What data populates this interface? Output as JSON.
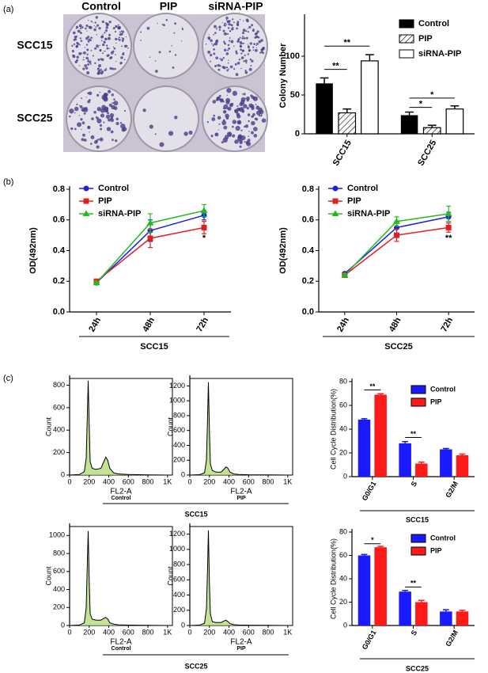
{
  "panel_labels": [
    "(a)",
    "(b)",
    "(c)"
  ],
  "plate_image": {
    "columns": [
      "Control",
      "PIP",
      "siRNA-PIP"
    ],
    "rows": [
      "SCC15",
      "SCC25"
    ]
  },
  "group_labels": [
    "SCC15",
    "SCC25"
  ],
  "chart_data": [
    {
      "type": "bar",
      "ylabel": "Colony Number",
      "categories": [
        "SCC15",
        "SCC25"
      ],
      "series": [
        {
          "name": "Control",
          "color": "#000000",
          "values": [
            65,
            24
          ],
          "errors": [
            7,
            4
          ]
        },
        {
          "name": "PIP",
          "color": "#ffffff",
          "pattern": "hatch",
          "values": [
            27,
            8
          ],
          "errors": [
            5,
            3
          ]
        },
        {
          "name": "siRNA-PIP",
          "color": "#ffffff",
          "values": [
            94,
            32
          ],
          "errors": [
            8,
            4
          ]
        }
      ],
      "ylim": [
        0,
        150
      ],
      "yticks": [
        0,
        50,
        100
      ],
      "legend": "upper right",
      "annotations": [
        "**",
        "**",
        "*",
        "*"
      ]
    },
    {
      "type": "line",
      "ylabel": "OD(492nm)",
      "xlabel": "SCC15",
      "categories": [
        "24h",
        "48h",
        "72h"
      ],
      "series": [
        {
          "name": "Control",
          "color": "#1f1fe0",
          "marker": "circle",
          "values": [
            0.19,
            0.53,
            0.63
          ],
          "errors": [
            0.01,
            0.07,
            0.03
          ]
        },
        {
          "name": "PIP",
          "color": "#e02020",
          "marker": "square",
          "values": [
            0.2,
            0.48,
            0.55
          ],
          "errors": [
            0.01,
            0.06,
            0.04
          ]
        },
        {
          "name": "siRNA-PIP",
          "color": "#22bb22",
          "marker": "triangle",
          "values": [
            0.19,
            0.58,
            0.66
          ],
          "errors": [
            0.01,
            0.06,
            0.04
          ]
        }
      ],
      "ylim": [
        0,
        0.8
      ],
      "yticks": [
        {
          "value": 0,
          "label": "0.0"
        },
        0.2,
        0.4,
        0.6,
        0.8
      ],
      "legend": "upper left",
      "annotations": [
        "*"
      ]
    },
    {
      "type": "line",
      "ylabel": "OD(492nm)",
      "xlabel": "SCC25",
      "categories": [
        "24h",
        "48h",
        "72h"
      ],
      "series": [
        {
          "name": "Control",
          "color": "#1f1fe0",
          "marker": "circle",
          "values": [
            0.25,
            0.55,
            0.62
          ],
          "errors": [
            0.01,
            0.04,
            0.03
          ]
        },
        {
          "name": "PIP",
          "color": "#e02020",
          "marker": "square",
          "values": [
            0.24,
            0.5,
            0.55
          ],
          "errors": [
            0.01,
            0.04,
            0.03
          ]
        },
        {
          "name": "siRNA-PIP",
          "color": "#22bb22",
          "marker": "triangle",
          "values": [
            0.24,
            0.59,
            0.64
          ],
          "errors": [
            0.01,
            0.03,
            0.05
          ]
        }
      ],
      "ylim": [
        0,
        0.8
      ],
      "yticks": [
        {
          "value": 0,
          "label": "0.0"
        },
        0.2,
        0.4,
        0.6,
        0.8
      ],
      "legend": "upper left",
      "annotations": [
        "**"
      ]
    },
    {
      "type": "histogram-line",
      "ylabel": "Count",
      "xlabel": "FL2-A",
      "caption": "Control",
      "color": "#000000",
      "fill": "#a9d66a",
      "x": [
        0,
        100,
        150,
        170,
        180,
        190,
        200,
        210,
        230,
        270,
        320,
        350,
        370,
        390,
        410,
        450,
        500,
        600,
        800,
        1000
      ],
      "values": [
        0,
        5,
        30,
        150,
        500,
        840,
        450,
        120,
        60,
        50,
        60,
        120,
        160,
        130,
        60,
        20,
        10,
        5,
        2,
        0
      ],
      "xlim": [
        0,
        1050
      ],
      "xticks": [
        0,
        200,
        400,
        600,
        800,
        {
          "value": 1000,
          "label": "1K"
        }
      ],
      "ylim": [
        0,
        860
      ],
      "yticks": [
        0,
        200,
        400,
        600,
        800
      ]
    },
    {
      "type": "histogram-line",
      "ylabel": "Count",
      "xlabel": "FL2-A",
      "caption": "PIP",
      "color": "#000000",
      "fill": "#a9d66a",
      "x": [
        0,
        100,
        150,
        170,
        180,
        190,
        200,
        210,
        230,
        270,
        320,
        350,
        370,
        390,
        410,
        450,
        500,
        600,
        800,
        1000
      ],
      "values": [
        0,
        5,
        30,
        200,
        700,
        1250,
        600,
        150,
        60,
        40,
        40,
        80,
        110,
        90,
        40,
        15,
        8,
        4,
        2,
        0
      ],
      "xlim": [
        0,
        1050
      ],
      "xticks": [
        0,
        200,
        400,
        600,
        800,
        {
          "value": 1000,
          "label": "1K"
        }
      ],
      "ylim": [
        0,
        1300
      ],
      "yticks": [
        0,
        200,
        400,
        600,
        800,
        1000,
        1200
      ]
    },
    {
      "type": "histogram-line",
      "ylabel": "Count",
      "xlabel": "FL2-A",
      "caption": "Control",
      "color": "#000000",
      "fill": "#a9d66a",
      "x": [
        0,
        100,
        150,
        170,
        180,
        190,
        200,
        210,
        230,
        270,
        320,
        350,
        370,
        390,
        410,
        450,
        500,
        600,
        800,
        1000
      ],
      "values": [
        0,
        5,
        30,
        200,
        650,
        1050,
        500,
        130,
        70,
        60,
        60,
        80,
        90,
        70,
        30,
        15,
        8,
        4,
        2,
        0
      ],
      "xlim": [
        0,
        1050
      ],
      "xticks": [
        0,
        200,
        400,
        600,
        800,
        {
          "value": 1000,
          "label": "1K"
        }
      ],
      "ylim": [
        0,
        1100
      ],
      "yticks": [
        0,
        200,
        400,
        600,
        800,
        1000
      ]
    },
    {
      "type": "histogram-line",
      "ylabel": "Count",
      "xlabel": "FL2-A",
      "caption": "PIP",
      "color": "#000000",
      "fill": "#a9d66a",
      "x": [
        0,
        100,
        150,
        170,
        180,
        190,
        200,
        210,
        230,
        270,
        320,
        350,
        370,
        390,
        410,
        450,
        500,
        600,
        800,
        1000
      ],
      "values": [
        0,
        5,
        30,
        220,
        700,
        1250,
        550,
        150,
        50,
        40,
        40,
        60,
        70,
        50,
        25,
        10,
        6,
        4,
        2,
        0
      ],
      "xlim": [
        0,
        1050
      ],
      "xticks": [
        0,
        200,
        400,
        600,
        800,
        {
          "value": 1000,
          "label": "1K"
        }
      ],
      "ylim": [
        0,
        1300
      ],
      "yticks": [
        0,
        200,
        400,
        600,
        800,
        1000,
        1200
      ]
    },
    {
      "type": "bar",
      "ylabel": "Cell Cycle Distribution(%)",
      "xlabel": "SCC15",
      "categories": [
        "G0/G1",
        "S",
        "G2/M"
      ],
      "series": [
        {
          "name": "Control",
          "color": "#1a1aff",
          "values": [
            48,
            28,
            23
          ],
          "errors": [
            0.8,
            1.5,
            0.7
          ]
        },
        {
          "name": "PIP",
          "color": "#ff1a1a",
          "values": [
            69,
            11,
            18
          ],
          "errors": [
            0.8,
            1.2,
            1
          ]
        }
      ],
      "ylim": [
        0,
        80
      ],
      "yticks": [
        0,
        20,
        40,
        60,
        80
      ],
      "legend": "upper right",
      "annotations": [
        "**",
        "**"
      ]
    },
    {
      "type": "bar",
      "ylabel": "Cell Cycle Distribution(%)",
      "xlabel": "SCC25",
      "categories": [
        "G0/G1",
        "S",
        "G2/M"
      ],
      "series": [
        {
          "name": "Control",
          "color": "#1a1aff",
          "values": [
            60,
            29,
            12
          ],
          "errors": [
            0.8,
            1,
            1.5
          ]
        },
        {
          "name": "PIP",
          "color": "#ff1a1a",
          "values": [
            67,
            20,
            12
          ],
          "errors": [
            0.8,
            1.5,
            1
          ]
        }
      ],
      "ylim": [
        0,
        80
      ],
      "yticks": [
        0,
        20,
        40,
        60,
        80
      ],
      "legend": "upper right",
      "annotations": [
        "*",
        "**"
      ]
    }
  ]
}
